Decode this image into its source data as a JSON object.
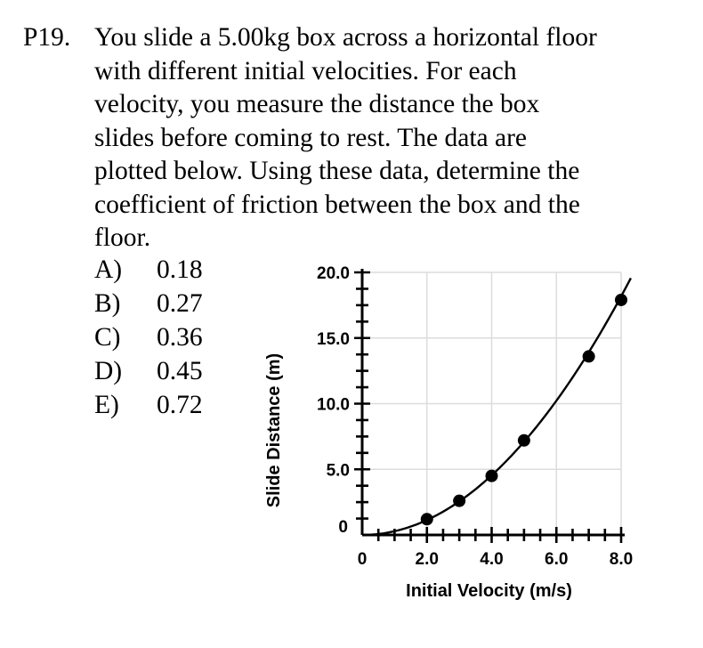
{
  "problem": {
    "number": "P19.",
    "lines": [
      "You slide a 5.00kg box across a horizontal floor",
      "with different initial velocities.  For each",
      "velocity, you measure the distance the box",
      "slides before coming to rest.  The data are",
      "plotted below.  Using these data, determine the",
      "coefficient of friction between the box and the",
      "floor."
    ]
  },
  "choices": [
    {
      "letter": "A)",
      "value": "0.18"
    },
    {
      "letter": "B)",
      "value": "0.27"
    },
    {
      "letter": "C)",
      "value": "0.36"
    },
    {
      "letter": "D)",
      "value": "0.45"
    },
    {
      "letter": "E)",
      "value": "0.72"
    }
  ],
  "chart_data": {
    "type": "scatter",
    "title": "",
    "xlabel": "Initial Velocity (m/s)",
    "ylabel": "Slide Distance (m)",
    "xlim": [
      0,
      8
    ],
    "ylim": [
      0,
      20
    ],
    "x_ticks": [
      {
        "value": 0,
        "label": "0"
      },
      {
        "value": 2,
        "label": "2.0"
      },
      {
        "value": 4,
        "label": "4.0"
      },
      {
        "value": 6,
        "label": "6.0"
      },
      {
        "value": 8,
        "label": "8.0"
      }
    ],
    "y_ticks": [
      {
        "value": 0,
        "label": "0"
      },
      {
        "value": 5,
        "label": "5.0"
      },
      {
        "value": 10,
        "label": "10.0"
      },
      {
        "value": 15,
        "label": "15.0"
      },
      {
        "value": 20,
        "label": "20.0"
      }
    ],
    "grid": true,
    "series": [
      {
        "x": [
          2.0,
          3.0,
          4.0,
          5.0,
          7.0,
          8.0
        ],
        "y": [
          1.2,
          2.6,
          4.5,
          7.2,
          13.6,
          17.9
        ]
      }
    ],
    "fit_curve": {
      "form": "quadratic",
      "coefficient": 0.284
    },
    "colors": {
      "marker": "#000000",
      "grid": "#dcdcdc",
      "axis": "#000000"
    }
  }
}
